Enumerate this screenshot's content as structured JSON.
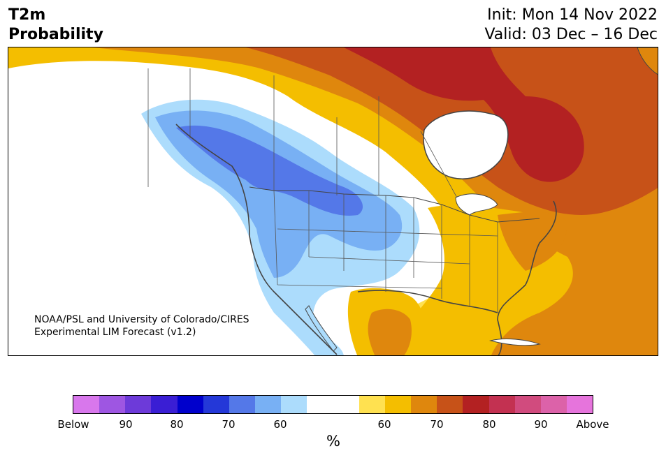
{
  "header": {
    "title_line1": "T2m",
    "title_line2": "Probability",
    "init": "Init: Mon 14 Nov 2022",
    "valid": "Valid: 03 Dec – 16 Dec"
  },
  "credit": {
    "line1": "NOAA/PSL and University of Colorado/CIRES",
    "line2": "Experimental LIM Forecast (v1.2)"
  },
  "colorbar": {
    "colors": [
      "#d877ec",
      "#9e56e2",
      "#6d3ad9",
      "#3a1ed4",
      "#0000cc",
      "#2438d8",
      "#5478e8",
      "#78b0f4",
      "#acdcfc",
      "#ffffff",
      "#ffffff",
      "#ffe150",
      "#f4be00",
      "#df870d",
      "#c75218",
      "#b32122",
      "#c33151",
      "#d14b7e",
      "#dc62a9",
      "#e674dc"
    ],
    "tick_labels": [
      "Below",
      "90",
      "80",
      "70",
      "60",
      "60",
      "70",
      "80",
      "90",
      "Above"
    ],
    "unit": "%"
  },
  "map": {
    "colors": {
      "land": "#ffffff",
      "yellow": "#ffe150",
      "gold": "#f4be00",
      "orange": "#df870d",
      "dark_orange": "#c75218",
      "red": "#b32122",
      "light_blue": "#acdcfc",
      "mid_blue": "#78b0f4",
      "blue": "#5478e8"
    }
  }
}
